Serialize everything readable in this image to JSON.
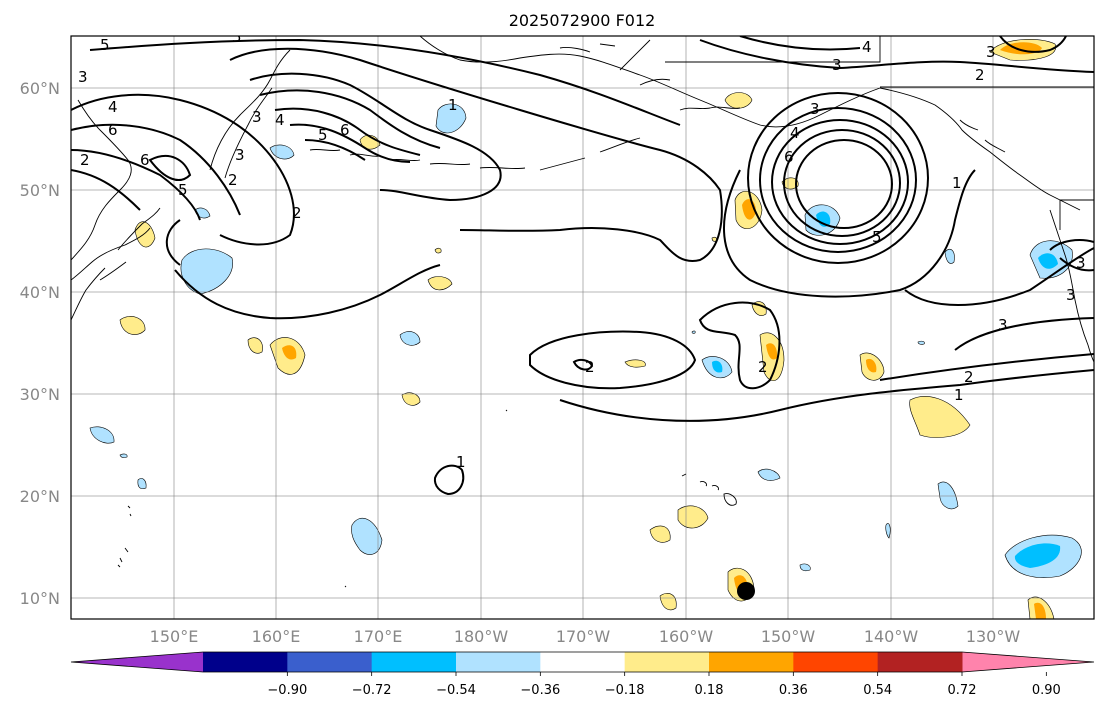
{
  "map": {
    "title": "2025072900 F012",
    "lat_labels": [
      "60°N",
      "50°N",
      "40°N",
      "30°N",
      "20°N",
      "10°N"
    ],
    "lon_labels": [
      "150°E",
      "160°E",
      "170°E",
      "180°W",
      "170°W",
      "160°W",
      "150°W",
      "140°W",
      "130°W"
    ],
    "contour_labels": [
      "5",
      "5",
      "4",
      "3",
      "3",
      "6",
      "6",
      "4",
      "5",
      "1",
      "6",
      "5",
      "2",
      "3",
      "4",
      "2",
      "3",
      "4",
      "3",
      "6",
      "1",
      "5",
      "2",
      "3",
      "1",
      "2",
      "2",
      "1",
      "2",
      "3",
      "3",
      "3",
      "2"
    ],
    "colors": {
      "contour": "#000000",
      "grid": "#888888",
      "land": "#000000",
      "marker": "#000000"
    }
  },
  "colorbar": {
    "ticks": [
      "−0.90",
      "−0.72",
      "−0.54",
      "−0.36",
      "−0.18",
      "0.18",
      "0.36",
      "0.54",
      "0.72",
      "0.90"
    ],
    "colors": [
      "#9932cc",
      "#00008b",
      "#3a5fcd",
      "#00bfff",
      "#b0e2ff",
      "#ffffff",
      "#ffec8b",
      "#ffa500",
      "#ff4500",
      "#b22222",
      "#ff83ac"
    ]
  }
}
